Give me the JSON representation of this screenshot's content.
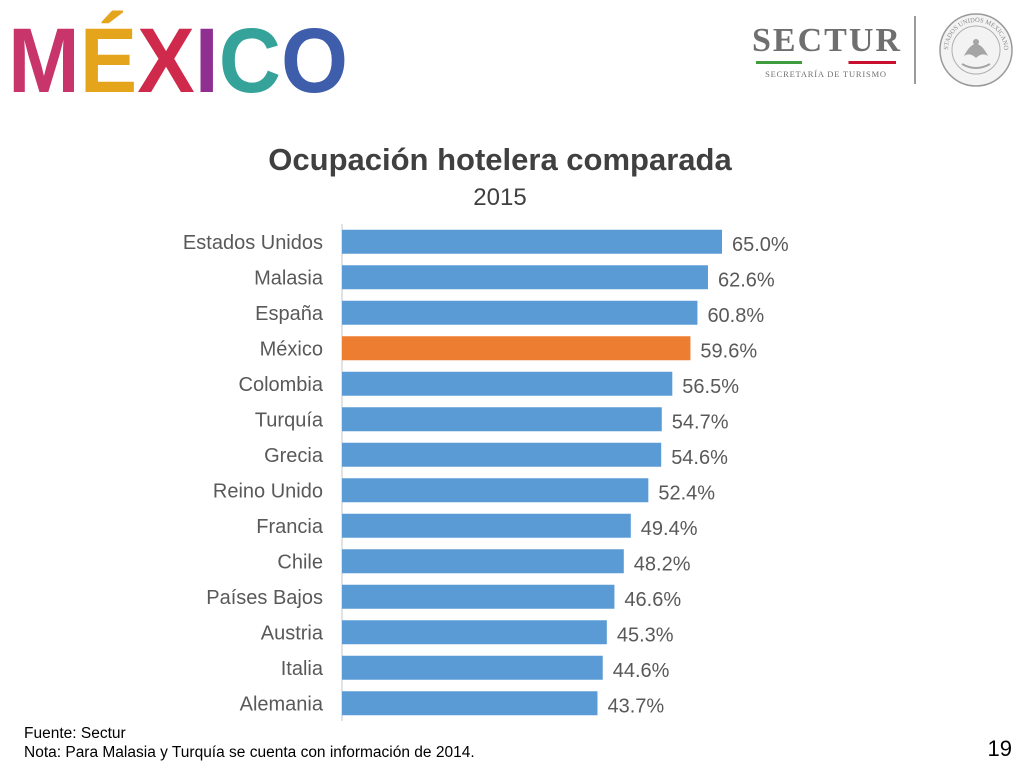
{
  "header": {
    "logo_letters": [
      "M",
      "É",
      "X",
      "I",
      "C",
      "O"
    ],
    "logo_colors": [
      "#c8356a",
      "#e4a51d",
      "#cf2a4b",
      "#8f2f91",
      "#35a39a",
      "#3e5daa"
    ],
    "sectur_name": "SECTUR",
    "sectur_subtitle": "SECRETARÍA DE TURISMO",
    "seal_icon": "mexican-coat-of-arms-seal",
    "seal_text": "ESTADOS UNIDOS MEXICANOS"
  },
  "chart_data": {
    "type": "bar",
    "orientation": "horizontal",
    "title": "Ocupación hotelera comparada",
    "subtitle": "2015",
    "categories": [
      "Estados Unidos",
      "Malasia",
      "España",
      "México",
      "Colombia",
      "Turquía",
      "Grecia",
      "Reino Unido",
      "Francia",
      "Chile",
      "Países Bajos",
      "Austria",
      "Italia",
      "Alemania"
    ],
    "values": [
      65.0,
      62.6,
      60.8,
      59.6,
      56.5,
      54.7,
      54.6,
      52.4,
      49.4,
      48.2,
      46.6,
      45.3,
      44.6,
      43.7
    ],
    "labels": [
      "65.0%",
      "62.6%",
      "60.8%",
      "59.6%",
      "56.5%",
      "54.7%",
      "54.6%",
      "52.4%",
      "49.4%",
      "48.2%",
      "46.6%",
      "45.3%",
      "44.6%",
      "43.7%"
    ],
    "xlim": [
      0,
      65
    ],
    "highlight_category": "México",
    "colors": {
      "default": "#5b9bd5",
      "highlight": "#ed7d31",
      "axis": "#d9d9d9",
      "text": "#595959"
    },
    "grid": false,
    "legend": "none"
  },
  "footer": {
    "source": "Fuente: Sectur",
    "note": "Nota: Para Malasia y Turquía se cuenta con información de 2014."
  },
  "page_number": "19"
}
